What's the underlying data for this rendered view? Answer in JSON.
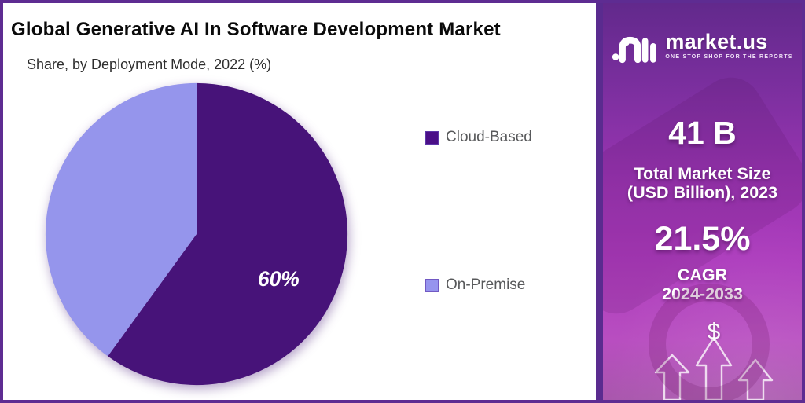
{
  "chart": {
    "title": "Global Generative AI In Software Development Market",
    "subtitle": "Share, by Deployment Mode, 2022 (%)",
    "legend": [
      {
        "label": "Cloud-Based",
        "color": "#4B0F88"
      },
      {
        "label": "On-Premise",
        "color": "#9694EE"
      }
    ]
  },
  "chart_data": {
    "type": "pie",
    "title": "Global Generative AI In Software Development Market",
    "subtitle": "Share, by Deployment Mode, 2022 (%)",
    "categories": [
      "Cloud-Based",
      "On-Premise"
    ],
    "values": [
      60,
      40
    ],
    "unit": "%",
    "colors": [
      "#471379",
      "#9595EC"
    ],
    "slice_labels": [
      "60%",
      ""
    ],
    "start_angle_deg": 0,
    "direction": "clockwise",
    "legend_position": "right"
  },
  "sidebar": {
    "brand": "market.us",
    "tagline": "ONE STOP SHOP FOR THE REPORTS",
    "stats": [
      {
        "value": "41 B",
        "label_line1": "Total Market Size",
        "label_line2": "(USD Billion), 2023"
      },
      {
        "value": "21.5%",
        "label_line1": "CAGR",
        "label_line2": "2024-2033"
      }
    ],
    "dollar_sign": "$"
  }
}
